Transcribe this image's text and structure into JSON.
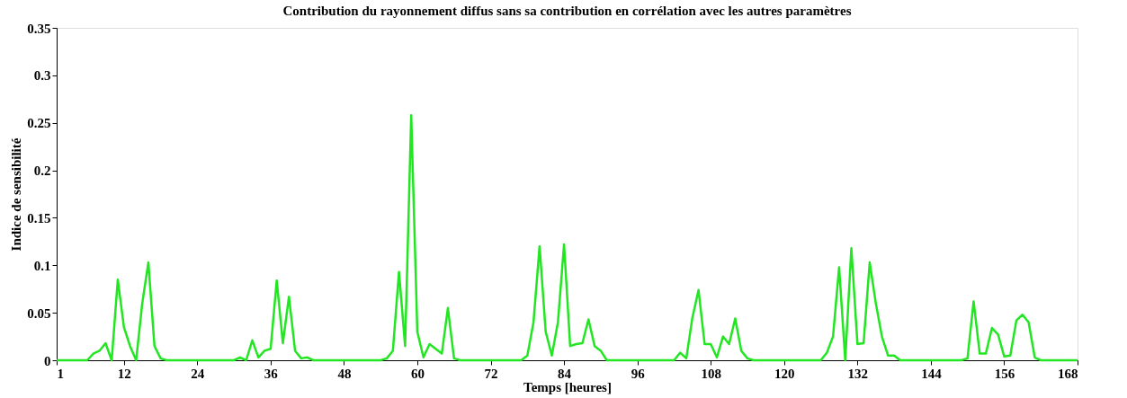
{
  "chart_data": {
    "type": "line",
    "title": "Contribution du rayonnement diffus  sans sa contribution en corrélation avec les autres paramètres",
    "xlabel": "Temps [heures]",
    "ylabel": "Indice de sensibilité",
    "x": [
      1,
      2,
      3,
      4,
      5,
      6,
      7,
      8,
      9,
      10,
      11,
      12,
      13,
      14,
      15,
      16,
      17,
      18,
      19,
      20,
      21,
      22,
      23,
      24,
      25,
      26,
      27,
      28,
      29,
      30,
      31,
      32,
      33,
      34,
      35,
      36,
      37,
      38,
      39,
      40,
      41,
      42,
      43,
      44,
      45,
      46,
      47,
      48,
      49,
      50,
      51,
      52,
      53,
      54,
      55,
      56,
      57,
      58,
      59,
      60,
      61,
      62,
      63,
      64,
      65,
      66,
      67,
      68,
      69,
      70,
      71,
      72,
      73,
      74,
      75,
      76,
      77,
      78,
      79,
      80,
      81,
      82,
      83,
      84,
      85,
      86,
      87,
      88,
      89,
      90,
      91,
      92,
      93,
      94,
      95,
      96,
      97,
      98,
      99,
      100,
      101,
      102,
      103,
      104,
      105,
      106,
      107,
      108,
      109,
      110,
      111,
      112,
      113,
      114,
      115,
      116,
      117,
      118,
      119,
      120,
      121,
      122,
      123,
      124,
      125,
      126,
      127,
      128,
      129,
      130,
      131,
      132,
      133,
      134,
      135,
      136,
      137,
      138,
      139,
      140,
      141,
      142,
      143,
      144,
      145,
      146,
      147,
      148,
      149,
      150,
      151,
      152,
      153,
      154,
      155,
      156,
      157,
      158,
      159,
      160,
      161,
      162,
      163,
      164,
      165,
      166,
      167,
      168
    ],
    "series": [
      {
        "color": "#22e622",
        "values": [
          0,
          0,
          0,
          0,
          0,
          0,
          0.007,
          0.01,
          0.018,
          0,
          0.085,
          0.035,
          0.015,
          0,
          0.06,
          0.103,
          0.015,
          0.002,
          0,
          0,
          0,
          0,
          0,
          0,
          0,
          0,
          0,
          0,
          0,
          0,
          0.003,
          0,
          0.021,
          0.003,
          0.01,
          0.012,
          0.084,
          0.018,
          0.067,
          0.01,
          0.002,
          0.003,
          0,
          0,
          0,
          0,
          0,
          0,
          0,
          0,
          0,
          0,
          0,
          0,
          0.002,
          0.01,
          0.093,
          0.015,
          0.258,
          0.03,
          0.003,
          0.017,
          0.012,
          0.007,
          0.055,
          0.002,
          0,
          0,
          0,
          0,
          0,
          0,
          0,
          0,
          0,
          0,
          0,
          0.005,
          0.04,
          0.12,
          0.03,
          0.005,
          0.04,
          0.122,
          0.015,
          0.017,
          0.018,
          0.043,
          0.015,
          0.01,
          0,
          0,
          0,
          0,
          0,
          0,
          0,
          0,
          0,
          0,
          0,
          0,
          0.008,
          0.002,
          0.045,
          0.074,
          0.017,
          0.017,
          0.003,
          0.025,
          0.017,
          0.044,
          0.01,
          0.002,
          0,
          0,
          0,
          0,
          0,
          0,
          0,
          0,
          0,
          0,
          0,
          0,
          0.008,
          0.025,
          0.098,
          0,
          0.118,
          0.017,
          0.018,
          0.103,
          0.06,
          0.025,
          0.005,
          0.005,
          0,
          0,
          0,
          0,
          0,
          0,
          0,
          0,
          0,
          0,
          0,
          0.002,
          0.062,
          0.007,
          0.007,
          0.034,
          0.027,
          0.004,
          0.005,
          0.042,
          0.048,
          0.04,
          0.003,
          0,
          0,
          0,
          0,
          0,
          0,
          0
        ]
      }
    ],
    "xlim": [
      1,
      168
    ],
    "xticks": [
      1,
      12,
      24,
      36,
      48,
      60,
      72,
      84,
      96,
      108,
      120,
      132,
      144,
      156,
      168
    ],
    "ylim": [
      0,
      0.35
    ],
    "yticks": [
      0,
      0.05,
      0.1,
      0.15,
      0.2,
      0.25,
      0.3,
      0.35
    ],
    "grid": false,
    "marker": "none",
    "line_style": "solid"
  }
}
